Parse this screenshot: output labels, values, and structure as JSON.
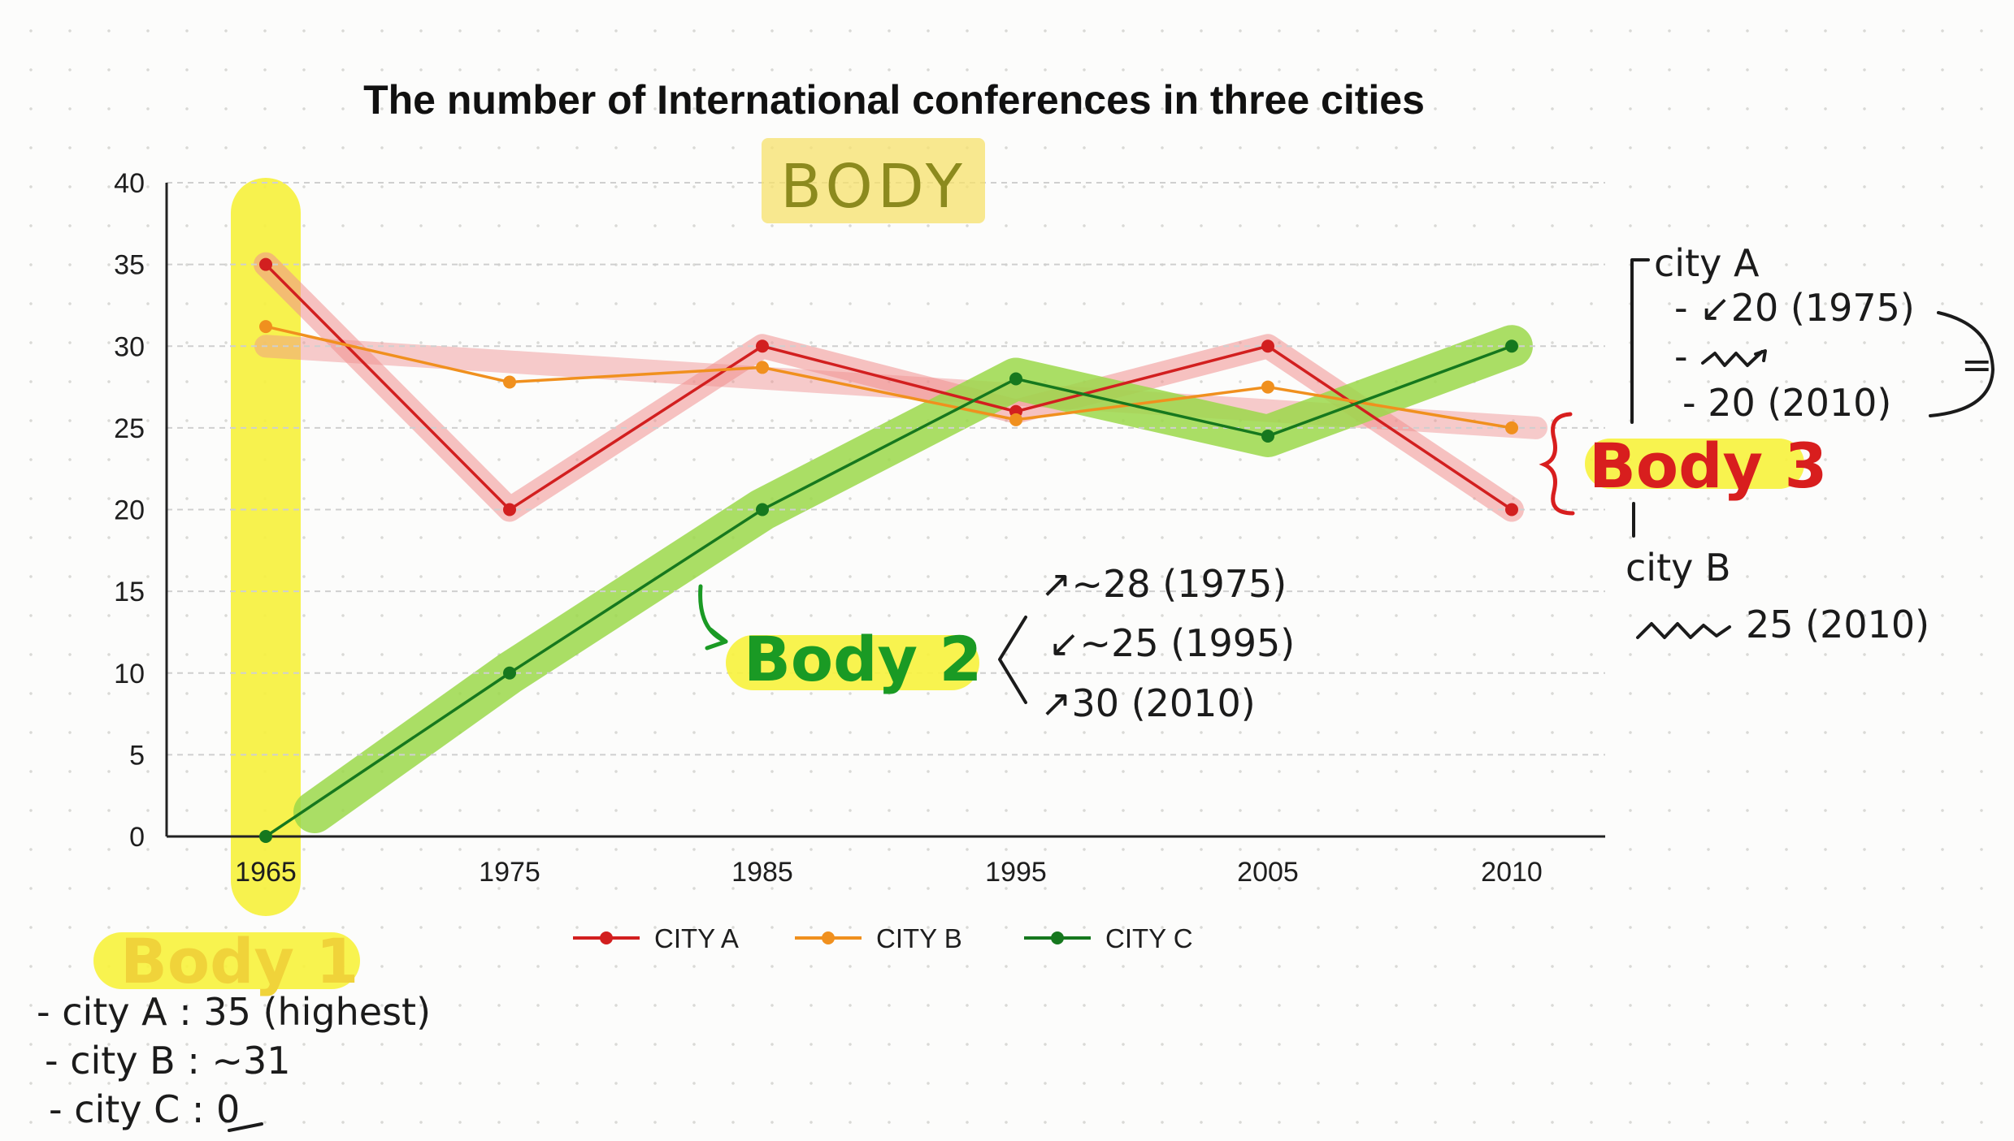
{
  "chart_data": {
    "type": "line",
    "title": "The number of International conferences in three cities",
    "categories": [
      "1965",
      "1975",
      "1985",
      "1995",
      "2005",
      "2010"
    ],
    "ylim": [
      0,
      40
    ],
    "yticks": [
      "0",
      "5",
      "10",
      "15",
      "20",
      "25",
      "30",
      "35",
      "40"
    ],
    "grid": true,
    "legend_position": "bottom",
    "series": [
      {
        "name": "CITY A",
        "color": "#d21f1f",
        "values": [
          35,
          20,
          30,
          26,
          30,
          20
        ]
      },
      {
        "name": "CITY B",
        "color": "#f0901e",
        "values": [
          31.2,
          27.8,
          28.7,
          25.5,
          27.5,
          25
        ]
      },
      {
        "name": "CITY C",
        "color": "#16781e",
        "values": [
          0,
          10,
          20,
          28,
          24.5,
          30
        ]
      }
    ]
  },
  "highlight_colors": {
    "yellow": "#f7f23c",
    "green": "#9bd84a",
    "red": "#f08f8f"
  },
  "annotations": {
    "body_label": "BODY",
    "body1": {
      "label": "Body 1",
      "lines": [
        "- city A : 35 (highest)",
        "- city B : ~31",
        "- city C : 0"
      ]
    },
    "body2": {
      "label": "Body 2",
      "lines": [
        "↗~28 (1975)",
        "↙~25 (1995)",
        "↗30 (2010)"
      ]
    },
    "body3": {
      "label": "Body 3",
      "city_a_label": "city A",
      "city_a_lines": [
        "- ↙20 (1975)",
        "- ",
        "- 20 (2010)"
      ],
      "equals": "=",
      "city_b_label": "city B",
      "city_b_value": "25 (2010)"
    }
  }
}
